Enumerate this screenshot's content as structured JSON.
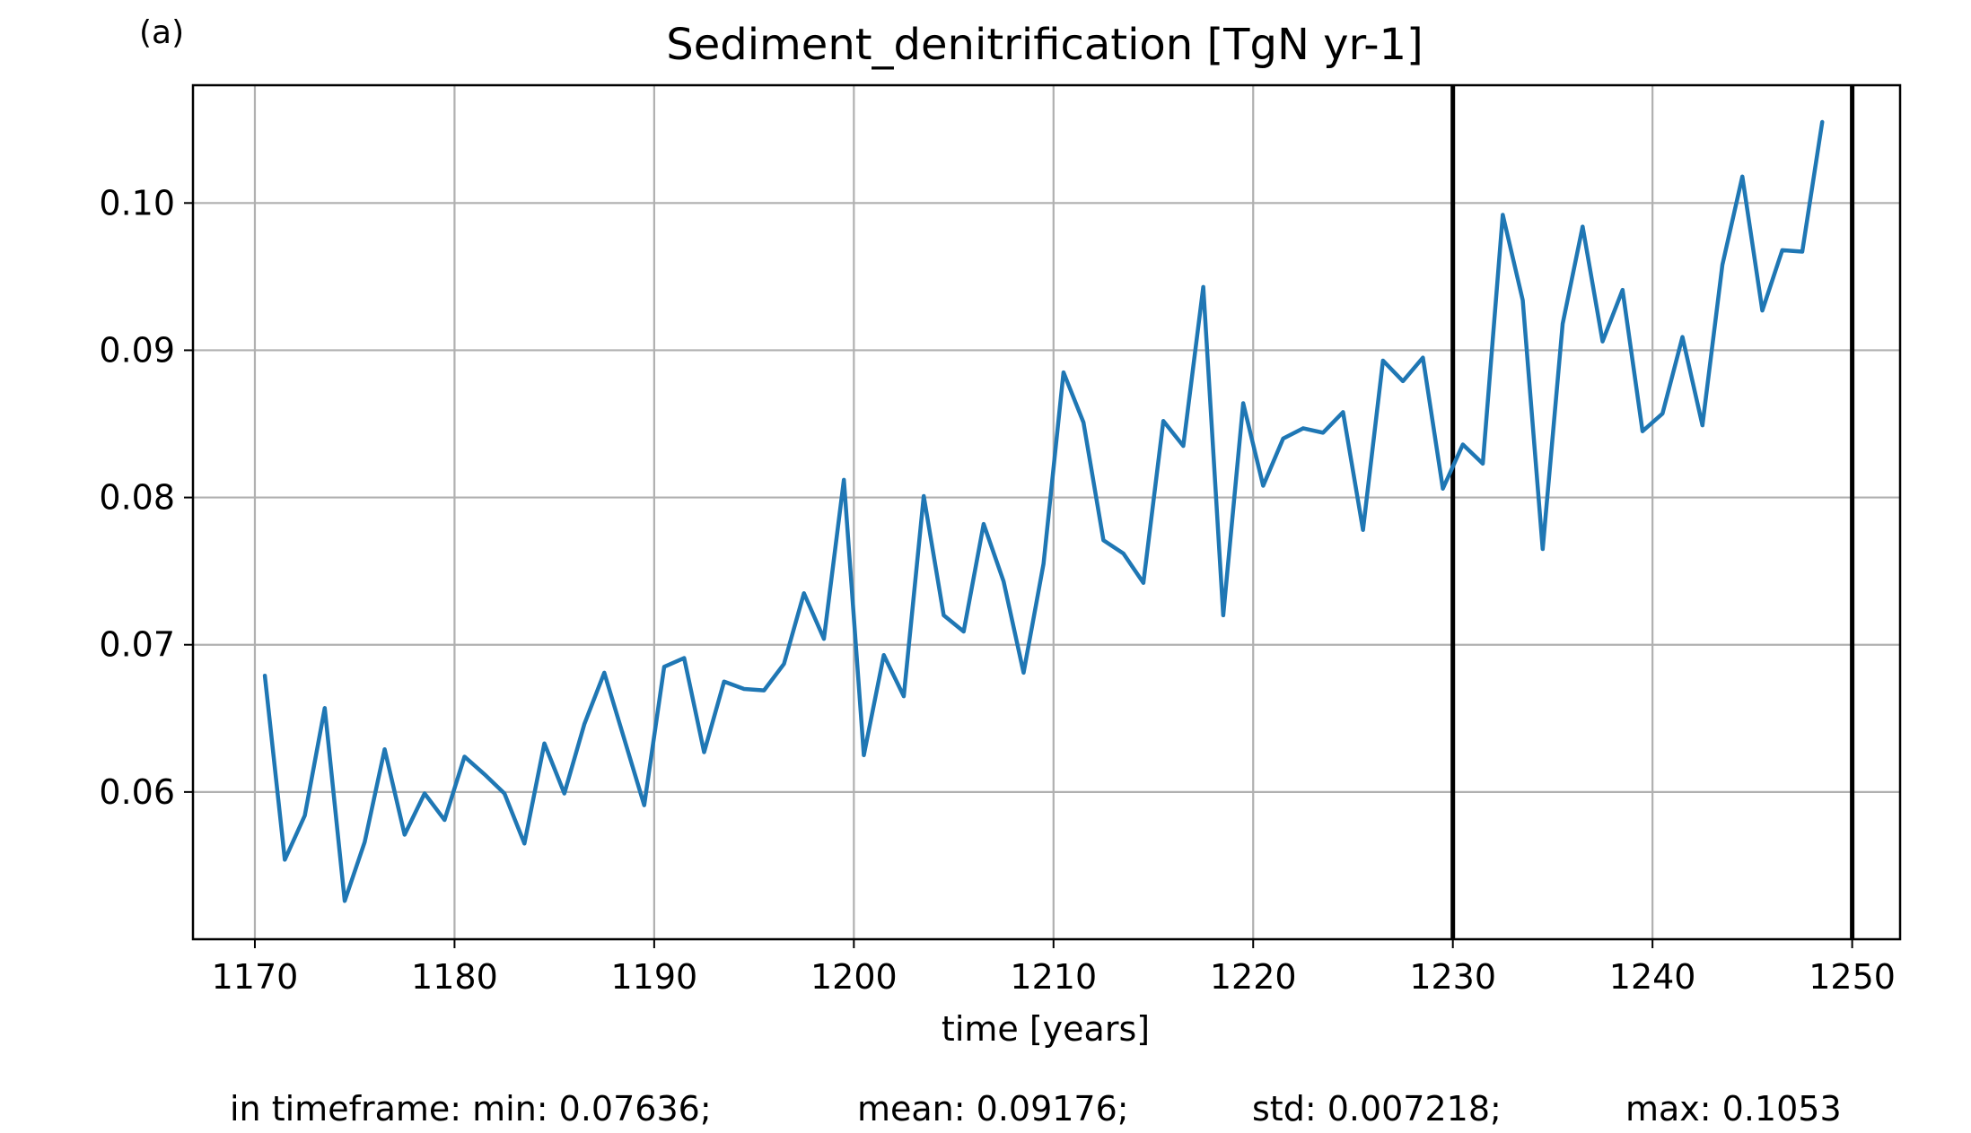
{
  "panel_label": "(a)",
  "stats": {
    "min": "in timeframe: min: 0.07636;",
    "mean": "mean: 0.09176;",
    "std": "std: 0.007218;",
    "max": "max: 0.1053"
  },
  "chart_data": {
    "type": "line",
    "title": "Sediment_denitrification [TgN yr-1]",
    "xlabel": "time [years]",
    "ylabel": "",
    "xlim": [
      1166.9,
      1252.4
    ],
    "ylim": [
      0.05,
      0.108
    ],
    "xticks": [
      1170,
      1180,
      1190,
      1200,
      1210,
      1220,
      1230,
      1240,
      1250
    ],
    "yticks": [
      0.06,
      0.07,
      0.08,
      0.09,
      0.1
    ],
    "ytick_labels": [
      "0.06",
      "0.07",
      "0.08",
      "0.09",
      "0.10"
    ],
    "grid": true,
    "line_color": "#1f77b4",
    "vline_color": "#000000",
    "vlines": [
      1230,
      1250
    ],
    "series": [
      {
        "x": [
          1170.5,
          1171.5,
          1172.5,
          1173.5,
          1174.5,
          1175.5,
          1176.5,
          1177.5,
          1178.5,
          1179.5,
          1180.5,
          1181.5,
          1182.5,
          1183.5,
          1184.5,
          1185.5,
          1186.5,
          1187.5,
          1188.5,
          1189.5,
          1190.5,
          1191.5,
          1192.5,
          1193.5,
          1194.5,
          1195.5,
          1196.5,
          1197.5,
          1198.5,
          1199.5,
          1200.5,
          1201.5,
          1202.5,
          1203.5,
          1204.5,
          1205.5,
          1206.5,
          1207.5,
          1208.5,
          1209.5,
          1210.5,
          1211.5,
          1212.5,
          1213.5,
          1214.5,
          1215.5,
          1216.5,
          1217.5,
          1218.5,
          1219.5,
          1220.5,
          1221.5,
          1222.5,
          1223.5,
          1224.5,
          1225.5,
          1226.5,
          1227.5,
          1228.5,
          1229.5,
          1230.5,
          1231.5,
          1232.5,
          1233.5,
          1234.5,
          1235.5,
          1236.5,
          1237.5,
          1238.5,
          1239.5,
          1240.5,
          1241.5,
          1242.5,
          1243.5,
          1244.5,
          1245.5,
          1246.5,
          1247.5,
          1248.5
        ],
        "y": [
          0.0679,
          0.0554,
          0.0584,
          0.0657,
          0.0526,
          0.0566,
          0.0629,
          0.0571,
          0.0599,
          0.0581,
          0.0624,
          0.0612,
          0.0599,
          0.0565,
          0.0633,
          0.0599,
          0.0646,
          0.0681,
          0.0636,
          0.0591,
          0.0685,
          0.0691,
          0.0627,
          0.0675,
          0.067,
          0.0669,
          0.0687,
          0.0735,
          0.0704,
          0.0812,
          0.0625,
          0.0693,
          0.0665,
          0.0801,
          0.072,
          0.0709,
          0.0782,
          0.0743,
          0.0681,
          0.0755,
          0.0885,
          0.0851,
          0.0771,
          0.0762,
          0.0742,
          0.0852,
          0.0835,
          0.0943,
          0.072,
          0.0864,
          0.0808,
          0.084,
          0.0847,
          0.0844,
          0.0858,
          0.0778,
          0.0893,
          0.0879,
          0.0895,
          0.0806,
          0.0836,
          0.0823,
          0.0992,
          0.0934,
          0.0765,
          0.0918,
          0.0984,
          0.0906,
          0.0941,
          0.0845,
          0.0857,
          0.0909,
          0.0849,
          0.0958,
          0.1018,
          0.0927,
          0.0968,
          0.0967,
          0.1055
        ]
      }
    ]
  }
}
